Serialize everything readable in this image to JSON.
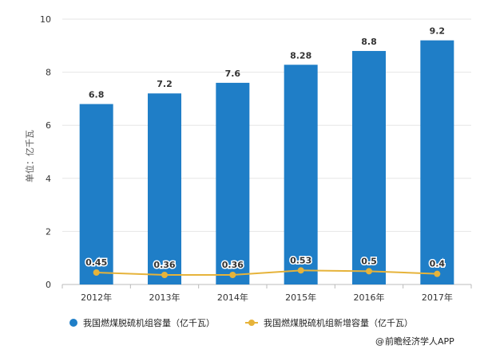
{
  "chart_data": {
    "type": "bar",
    "categories": [
      "2012年",
      "2013年",
      "2014年",
      "2015年",
      "2016年",
      "2017年"
    ],
    "ylabel": "单位：亿千瓦",
    "ylim": [
      0,
      10
    ],
    "yticks": [
      0,
      2,
      4,
      6,
      8,
      10
    ],
    "grid": true,
    "legend_position": "bottom",
    "series": [
      {
        "name": "我国燃煤脱硫机组容量（亿千瓦）",
        "kind": "bar",
        "color": "#1f7ec7",
        "values": [
          6.8,
          7.2,
          7.6,
          8.28,
          8.8,
          9.2
        ],
        "labels": [
          "6.8",
          "7.2",
          "7.6",
          "8.28",
          "8.8",
          "9.2"
        ]
      },
      {
        "name": "我国燃煤脱硫机组新增容量（亿千瓦）",
        "kind": "line",
        "color": "#e6b33a",
        "values": [
          0.45,
          0.36,
          0.36,
          0.53,
          0.5,
          0.4
        ],
        "labels": [
          "0.45",
          "0.36",
          "0.36",
          "0.53",
          "0.5",
          "0.4"
        ]
      }
    ]
  },
  "credit": {
    "prefix": "@",
    "text": "前瞻经济学人APP"
  }
}
